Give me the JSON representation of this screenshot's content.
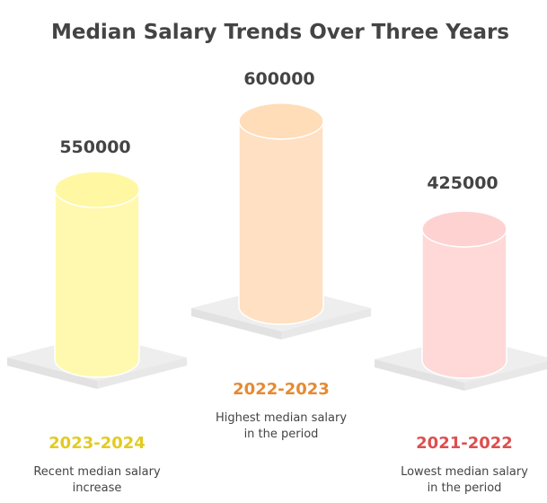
{
  "chart_data": {
    "type": "bar",
    "title": "Median Salary Trends Over Three Years",
    "categories": [
      "2023-2024",
      "2022-2023",
      "2021-2022"
    ],
    "values": [
      550000,
      600000,
      425000
    ],
    "value_labels": [
      "550000",
      "600000",
      "425000"
    ],
    "descriptions": [
      [
        "Recent median salary",
        "increase"
      ],
      [
        "Highest median salary",
        "in the period"
      ],
      [
        "Lowest median salary",
        "in the period"
      ]
    ],
    "colors": {
      "cylinders": [
        "#FFF9B0",
        "#FFE0C2",
        "#FFD8D8"
      ],
      "cylinder_tops": [
        "#FFF7A1",
        "#FFDDB8",
        "#FFD2D2"
      ],
      "category_labels": [
        "#E2CB22",
        "#E58A33",
        "#DD4F4F"
      ],
      "base": "#EEEEEE"
    }
  }
}
